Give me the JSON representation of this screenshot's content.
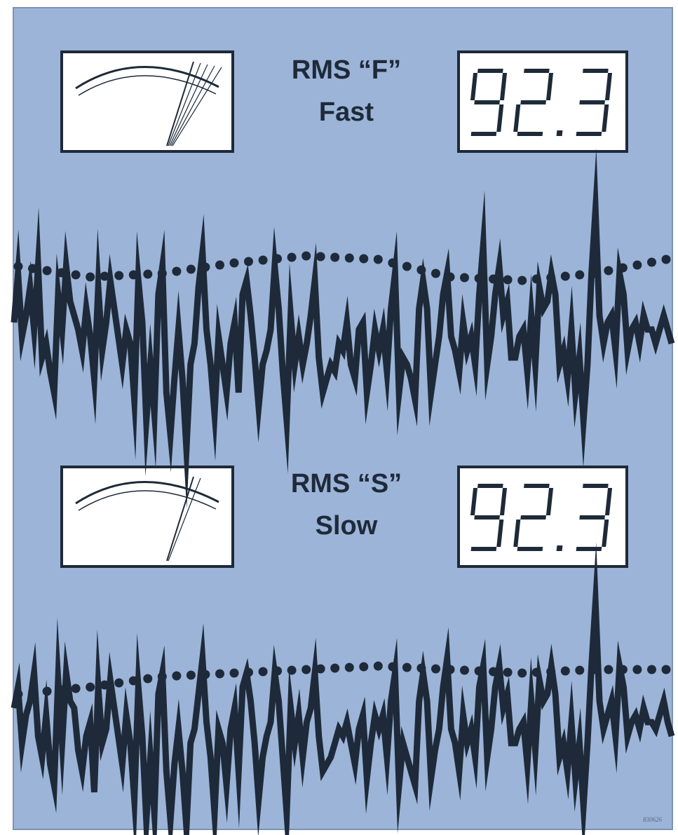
{
  "sections": [
    {
      "mode_line1": "RMS “F”",
      "mode_line2": "Fast",
      "digital_reading": "92.3",
      "meter_needle_count": 5,
      "waveform": [
        460,
        390,
        480,
        450,
        410,
        470,
        380,
        510,
        490,
        530,
        560,
        420,
        470,
        380,
        430,
        450,
        470,
        500,
        440,
        480,
        540,
        410,
        500,
        460,
        400,
        440,
        480,
        520,
        470,
        490,
        570,
        400,
        460,
        600,
        520,
        590,
        420,
        380,
        560,
        620,
        540,
        470,
        540,
        640,
        520,
        490,
        410,
        360,
        470,
        520,
        590,
        480,
        520,
        560,
        490,
        460,
        560,
        420,
        400,
        450,
        510,
        580,
        520,
        500,
        470,
        380,
        440,
        530,
        600,
        450,
        520,
        480,
        520,
        490,
        450,
        400,
        510,
        560,
        540,
        520,
        530,
        490,
        500,
        460,
        520,
        540,
        470,
        460,
        560,
        520,
        470,
        500,
        470,
        530,
        440,
        390,
        560,
        510,
        520,
        540,
        570,
        440,
        400,
        440,
        560,
        520,
        480,
        420,
        390,
        480,
        500,
        530,
        460,
        500,
        480,
        520,
        420,
        350,
        520,
        480,
        420,
        380,
        450,
        430,
        510,
        510,
        480,
        470,
        530,
        450,
        520,
        410,
        440,
        430,
        390,
        420,
        520,
        500,
        540,
        470,
        560,
        510,
        600,
        520,
        390,
        300,
        450,
        490,
        460,
        450,
        500,
        390,
        420,
        500,
        470,
        460,
        490,
        450,
        470,
        470,
        490,
        470,
        450,
        470,
        490
      ],
      "average_line": [
        380,
        395,
        390,
        375,
        365,
        370,
        395,
        400,
        390,
        370
      ]
    },
    {
      "mode_line1": "RMS “S”",
      "mode_line2": "Slow",
      "digital_reading": "92.3",
      "meter_needle_count": 2,
      "waveform": [
        1010,
        980,
        1060,
        1020,
        1000,
        960,
        1050,
        1080,
        1020,
        1090,
        1120,
        970,
        1060,
        960,
        1000,
        1010,
        1070,
        1100,
        1050,
        1030,
        1130,
        980,
        1060,
        1040,
        970,
        1010,
        1050,
        1090,
        1020,
        1060,
        1140,
        980,
        1050,
        1170,
        1080,
        1160,
        990,
        960,
        1100,
        1170,
        1090,
        1040,
        1100,
        1180,
        1060,
        1040,
        990,
        940,
        1030,
        1080,
        1160,
        1040,
        1060,
        1120,
        1040,
        1010,
        1100,
        980,
        960,
        1000,
        1060,
        1140,
        1080,
        1050,
        1030,
        960,
        1000,
        1080,
        1160,
        1010,
        1060,
        1020,
        1080,
        1030,
        1010,
        960,
        1050,
        1100,
        1090,
        1080,
        1060,
        1040,
        1050,
        1030,
        1060,
        1090,
        1040,
        1020,
        1110,
        1060,
        1020,
        1040,
        1020,
        1080,
        1000,
        960,
        1120,
        1060,
        1080,
        1100,
        1120,
        1000,
        960,
        1000,
        1110,
        1070,
        1040,
        980,
        940,
        1040,
        1060,
        1100,
        1020,
        1060,
        1040,
        1080,
        980,
        950,
        1080,
        1040,
        980,
        950,
        1010,
        990,
        1060,
        1060,
        1040,
        1030,
        1090,
        1000,
        1070,
        970,
        1000,
        990,
        950,
        990,
        1080,
        1060,
        1100,
        1030,
        1110,
        1060,
        1150,
        1060,
        950,
        860,
        1000,
        1040,
        1020,
        1000,
        1050,
        950,
        980,
        1050,
        1030,
        1020,
        1040,
        1010,
        1030,
        1030,
        1040,
        1020,
        1000,
        1030,
        1050
      ],
      "average_line": [
        990,
        980,
        965,
        960,
        955,
        950,
        955,
        960,
        955,
        955
      ]
    }
  ],
  "figure_code": "830626",
  "colors": {
    "background": "#9cb4d7",
    "ink": "#1e2a39",
    "panel_white": "#ffffff"
  }
}
